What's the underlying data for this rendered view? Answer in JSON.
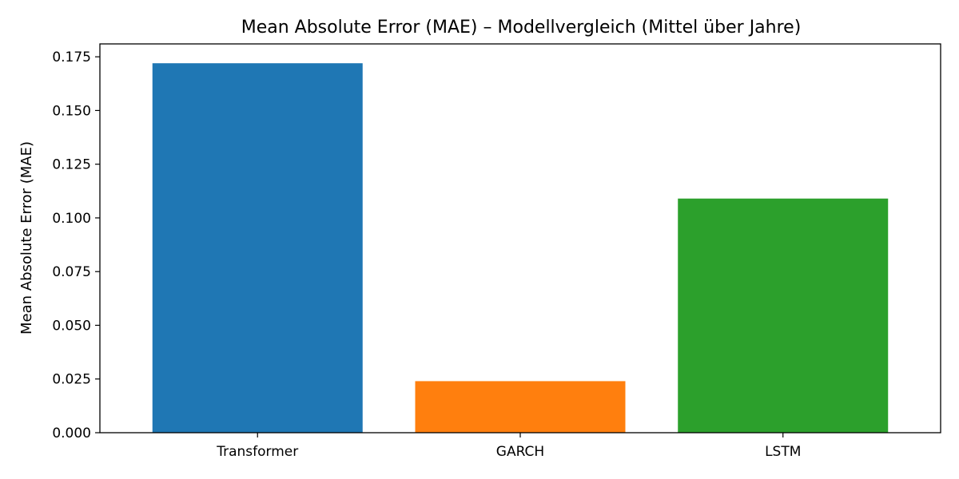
{
  "chart_data": {
    "type": "bar",
    "title": "Mean Absolute Error (MAE) – Modellvergleich (Mittel über Jahre)",
    "xlabel": "",
    "ylabel": "Mean Absolute Error (MAE)",
    "categories": [
      "Transformer",
      "GARCH",
      "LSTM"
    ],
    "values": [
      0.172,
      0.024,
      0.109
    ],
    "colors": [
      "#1f77b4",
      "#ff7f0e",
      "#2ca02c"
    ],
    "ylim": [
      0,
      0.181
    ],
    "yticks": [
      "0.000",
      "0.025",
      "0.050",
      "0.075",
      "0.100",
      "0.125",
      "0.150",
      "0.175"
    ],
    "grid": false,
    "legend": "none"
  }
}
